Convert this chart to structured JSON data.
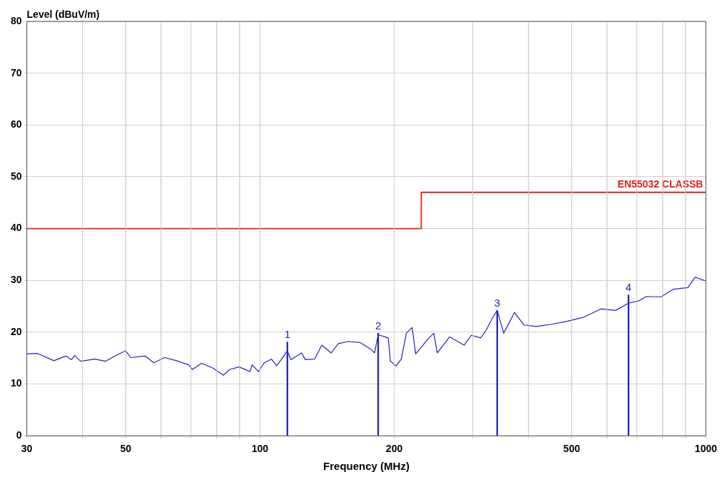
{
  "chart_data": {
    "type": "line",
    "xlabel": "Frequency (MHz)",
    "ylabel": "Level (dBuV/m)",
    "log": "x",
    "grid": true,
    "xlim": [
      30,
      1000
    ],
    "ylim": [
      0,
      80
    ],
    "xticks": [
      30,
      {
        "value": 40,
        "label": null
      },
      50,
      {
        "value": 60,
        "label": null
      },
      {
        "value": 70,
        "label": null
      },
      {
        "value": 80,
        "label": null
      },
      {
        "value": 90,
        "label": null
      },
      100,
      200,
      {
        "value": 300,
        "label": null
      },
      {
        "value": 400,
        "label": null
      },
      500,
      {
        "value": 600,
        "label": null
      },
      {
        "value": 700,
        "label": null
      },
      {
        "value": 800,
        "label": null
      },
      {
        "value": 900,
        "label": null
      },
      1000
    ],
    "yticks": [
      0,
      10,
      20,
      30,
      40,
      50,
      60,
      70,
      80
    ],
    "series": [
      {
        "color": "#2020c0",
        "x": [
          30,
          31.7,
          34.5,
          36.7,
          37.8,
          38.4,
          39.6,
          42.6,
          45.1,
          47.3,
          50,
          51.3,
          55.3,
          57.8,
          61.1,
          65,
          69.2,
          70.5,
          74,
          78.3,
          82.8,
          85.5,
          89.8,
          95,
          96,
          99.2,
          102.2,
          106.1,
          109,
          115.2,
          117.3,
          124,
          126.4,
          132.6,
          137.6,
          144.4,
          149.9,
          158,
          167.7,
          176.7,
          180.7,
          184.1,
          193.9,
          196.1,
          202,
          207.4,
          212.9,
          219.3,
          223.5,
          232,
          238.1,
          245.3,
          249.9,
          266.3,
          286.9,
          297.8,
          312.6,
          322.1,
          332.9,
          340.4,
          352,
          372.2,
          390.6,
          416.1,
          448.2,
          488.4,
          532.2,
          582,
          627,
          670.6,
          709,
          735.8,
          792.7,
          845.9,
          910.9,
          945.4,
          1000
        ],
        "values": [
          15.8,
          15.9,
          14.5,
          15.4,
          14.7,
          15.5,
          14.4,
          14.8,
          14.4,
          15.4,
          16.4,
          15.1,
          15.4,
          14.1,
          15.1,
          14.5,
          13.7,
          12.8,
          14,
          13.1,
          11.7,
          12.8,
          13.3,
          12.4,
          13.7,
          12.4,
          14.1,
          14.8,
          13.5,
          16.4,
          14.7,
          16,
          14.7,
          14.8,
          17.5,
          16,
          17.8,
          18.2,
          18,
          16.8,
          16,
          19.5,
          18.9,
          14.4,
          13.5,
          14.8,
          19.8,
          20.9,
          15.8,
          17.5,
          18.7,
          19.8,
          16,
          19.1,
          17.5,
          19.4,
          18.9,
          20.5,
          22.9,
          24.2,
          19.8,
          23.8,
          21.4,
          21.1,
          21.5,
          22.1,
          22.9,
          24.5,
          24.2,
          25.6,
          26.1,
          26.9,
          26.8,
          28.3,
          28.6,
          30.6,
          29.9
        ]
      },
      {
        "type": "step",
        "name": "EN55032 CLASSB",
        "color": "#e02020",
        "x": [
          30,
          230,
          1000
        ],
        "values": [
          40,
          47,
          47
        ]
      },
      {
        "type": "bar",
        "color": "#2020c0",
        "x": [
          115.2,
          184.1,
          340.4,
          670.6
        ],
        "values": [
          18.1,
          19.8,
          24.2,
          27.2
        ]
      }
    ],
    "annotations": [
      {
        "text": "1",
        "x": 115.2,
        "y": 18.1
      },
      {
        "text": "2",
        "x": 184.1,
        "y": 19.8
      },
      {
        "text": "3",
        "x": 340.4,
        "y": 24.2
      },
      {
        "text": "4",
        "x": 670.6,
        "y": 27.2
      }
    ]
  }
}
